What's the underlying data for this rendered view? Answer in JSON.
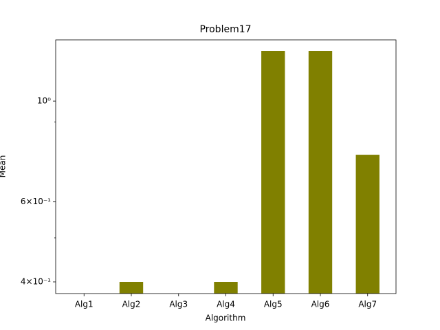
{
  "chart_data": {
    "type": "bar",
    "title": "Problem17",
    "x_label": "Algorithm",
    "y_label": "Mean",
    "categories": [
      "Alg1",
      "Alg2",
      "Alg3",
      "Alg4",
      "Alg5",
      "Alg6",
      "Alg7"
    ],
    "values": [
      0,
      0.4,
      0,
      0.4,
      1.29,
      1.29,
      0.762
    ],
    "color": "#808000",
    "y_scale": "log",
    "ylim": [
      0.377,
      1.364
    ],
    "yticks": [
      {
        "value": 1,
        "label": "10⁰"
      },
      {
        "value": 0.6,
        "label": "6×10⁻¹"
      },
      {
        "value": 0.4,
        "label": "4×10⁻¹"
      }
    ],
    "yminorticks": [
      0.5,
      0.9
    ]
  }
}
